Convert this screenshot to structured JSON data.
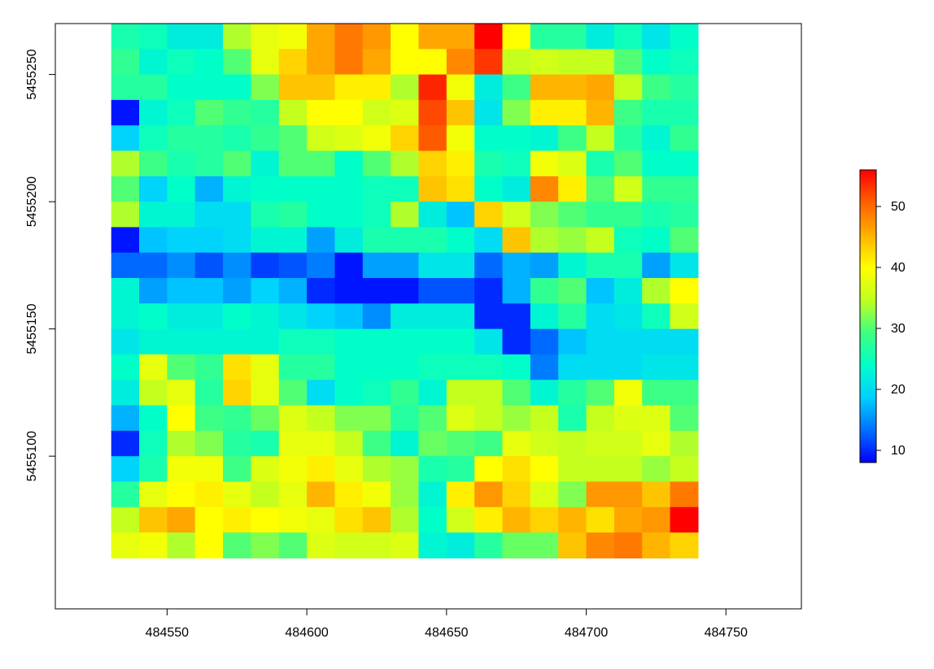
{
  "chart_data": {
    "type": "heatmap",
    "title": "",
    "xlabel": "",
    "ylabel": "",
    "xlim": [
      484510,
      484777
    ],
    "ylim": [
      5455040,
      5455270
    ],
    "x_range": [
      484530,
      484740
    ],
    "y_range": [
      5455050,
      5455270
    ],
    "cell_size": [
      10,
      10
    ],
    "x_ticks": [
      484550,
      484600,
      484650,
      484700,
      484750
    ],
    "y_ticks": [
      5455100,
      5455150,
      5455200,
      5455250
    ],
    "colorbar": {
      "min": 8,
      "max": 56,
      "ticks": [
        10,
        20,
        30,
        40,
        50
      ],
      "palette": "rainbow (blue to red)",
      "colors": [
        "#0000ff",
        "#0070ff",
        "#00d0ff",
        "#00ffc8",
        "#40ff80",
        "#c0ff20",
        "#ffff00",
        "#ffb000",
        "#ff6000",
        "#ff0000"
      ]
    },
    "grid": false,
    "legend": "right",
    "values": [
      [
        26,
        25,
        22,
        22,
        34,
        38,
        39,
        46,
        49,
        47,
        40,
        46,
        46,
        56,
        40,
        27,
        27,
        22,
        25,
        21,
        24
      ],
      [
        28,
        23,
        25,
        24,
        30,
        38,
        43,
        46,
        49,
        46,
        40,
        40,
        48,
        53,
        35,
        36,
        35,
        35,
        30,
        24,
        25
      ],
      [
        27,
        27,
        24,
        24,
        24,
        32,
        44,
        44,
        41,
        41,
        34,
        54,
        39,
        22,
        29,
        45,
        45,
        46,
        35,
        29,
        27
      ],
      [
        9,
        23,
        25,
        30,
        28,
        27,
        35,
        40,
        40,
        36,
        37,
        52,
        44,
        21,
        32,
        41,
        41,
        45,
        29,
        26,
        26
      ],
      [
        19,
        25,
        27,
        27,
        26,
        28,
        30,
        36,
        37,
        39,
        43,
        51,
        39,
        24,
        24,
        23,
        29,
        35,
        27,
        23,
        28
      ],
      [
        34,
        29,
        26,
        27,
        30,
        23,
        30,
        30,
        24,
        30,
        34,
        43,
        41,
        26,
        25,
        39,
        37,
        26,
        30,
        24,
        24
      ],
      [
        30,
        19,
        24,
        17,
        23,
        24,
        24,
        24,
        24,
        25,
        25,
        44,
        42,
        24,
        22,
        48,
        41,
        30,
        36,
        28,
        28
      ],
      [
        34,
        23,
        23,
        20,
        20,
        26,
        27,
        24,
        24,
        25,
        34,
        22,
        18,
        43,
        36,
        32,
        30,
        28,
        28,
        26,
        27
      ],
      [
        9,
        18,
        19,
        19,
        20,
        23,
        23,
        16,
        22,
        26,
        26,
        26,
        24,
        20,
        44,
        34,
        33,
        35,
        25,
        24,
        30
      ],
      [
        13,
        13,
        15,
        12,
        15,
        11,
        12,
        14,
        9,
        16,
        16,
        21,
        21,
        13,
        17,
        16,
        23,
        26,
        26,
        16,
        21
      ],
      [
        23,
        16,
        18,
        18,
        16,
        19,
        17,
        10,
        9,
        9,
        9,
        12,
        12,
        10,
        17,
        28,
        30,
        18,
        22,
        34,
        40
      ],
      [
        23,
        24,
        22,
        22,
        24,
        23,
        21,
        19,
        18,
        15,
        22,
        22,
        22,
        10,
        10,
        23,
        27,
        20,
        21,
        25,
        36
      ],
      [
        21,
        23,
        23,
        23,
        23,
        23,
        25,
        25,
        24,
        24,
        24,
        24,
        24,
        21,
        10,
        13,
        18,
        20,
        20,
        20,
        20
      ],
      [
        24,
        38,
        30,
        28,
        42,
        38,
        27,
        27,
        24,
        24,
        24,
        25,
        25,
        25,
        24,
        14,
        20,
        20,
        20,
        21,
        21
      ],
      [
        22,
        35,
        38,
        27,
        43,
        38,
        30,
        20,
        24,
        25,
        28,
        23,
        35,
        35,
        30,
        23,
        27,
        30,
        39,
        29,
        29
      ],
      [
        17,
        24,
        40,
        29,
        28,
        31,
        37,
        35,
        32,
        32,
        27,
        30,
        37,
        35,
        33,
        35,
        26,
        35,
        37,
        37,
        30
      ],
      [
        10,
        25,
        34,
        32,
        27,
        26,
        38,
        38,
        35,
        29,
        23,
        31,
        30,
        29,
        38,
        36,
        35,
        36,
        36,
        38,
        34
      ],
      [
        19,
        26,
        39,
        39,
        29,
        37,
        39,
        41,
        38,
        34,
        33,
        26,
        27,
        40,
        42,
        40,
        35,
        35,
        35,
        33,
        35
      ],
      [
        27,
        38,
        40,
        41,
        38,
        35,
        38,
        45,
        41,
        39,
        33,
        23,
        41,
        47,
        43,
        37,
        32,
        47,
        47,
        44,
        49
      ],
      [
        35,
        44,
        46,
        40,
        41,
        40,
        39,
        38,
        42,
        44,
        34,
        24,
        36,
        41,
        45,
        43,
        45,
        42,
        46,
        47,
        56
      ],
      [
        38,
        39,
        34,
        40,
        30,
        32,
        30,
        37,
        36,
        36,
        37,
        23,
        22,
        27,
        31,
        31,
        44,
        48,
        49,
        45,
        43
      ]
    ]
  }
}
